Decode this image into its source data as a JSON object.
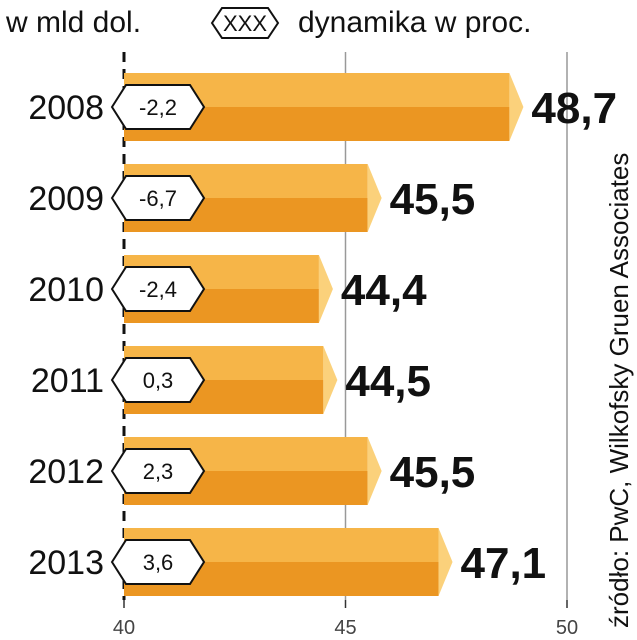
{
  "header": {
    "unit_label": "w mld dol.",
    "badge_sample": "XXX",
    "dynamics_label": "dynamika w proc."
  },
  "source": "źródło: PwC, Wilkofsky Gruen Associates",
  "colors": {
    "bar_top": "#f6b548",
    "bar_bottom": "#eb9622",
    "bar_cap": "#fbd17b",
    "badge_fill": "#ffffff",
    "badge_stroke": "#111111",
    "grid": "#999999",
    "text": "#111111"
  },
  "chart_data": {
    "type": "bar",
    "orientation": "horizontal",
    "categories": [
      "2008",
      "2009",
      "2010",
      "2011",
      "2012",
      "2013"
    ],
    "series": [
      {
        "values": [
          48.7,
          45.5,
          44.4,
          44.5,
          45.5,
          47.1
        ]
      }
    ],
    "value_labels": [
      "48,7",
      "45,5",
      "44,4",
      "44,5",
      "45,5",
      "47,1"
    ],
    "dynamics_labels": [
      "-2,2",
      "-6,7",
      "-2,4",
      "0,3",
      "2,3",
      "3,6"
    ],
    "dynamics": [
      -2.2,
      -6.7,
      -2.4,
      0.3,
      2.3,
      3.6
    ],
    "xlim": [
      40,
      50
    ],
    "ticks": [
      40,
      45,
      50
    ],
    "tick_labels": [
      "40",
      "45",
      "50"
    ],
    "grid": true
  }
}
